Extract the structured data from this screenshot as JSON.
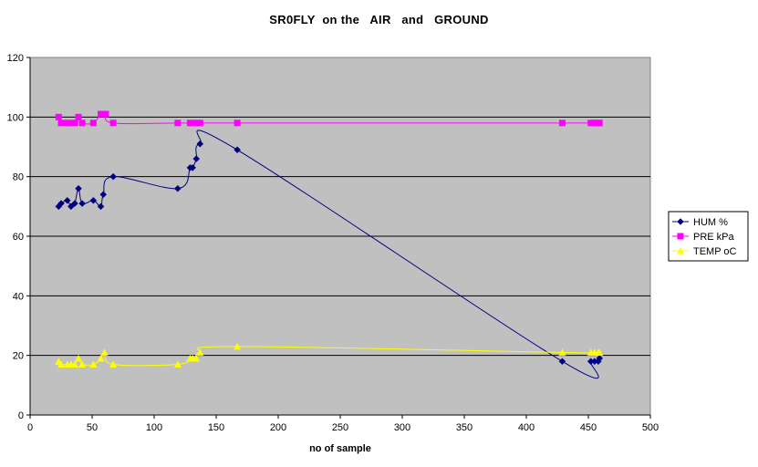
{
  "chart_data": {
    "type": "line",
    "title": "SR0FLY  on the   AIR   and   GROUND",
    "xlabel": "no of sample",
    "ylabel": "",
    "xlim": [
      0,
      500
    ],
    "ylim": [
      0,
      120
    ],
    "xticks": [
      0,
      50,
      100,
      150,
      200,
      250,
      300,
      350,
      400,
      450,
      500
    ],
    "yticks": [
      0,
      20,
      40,
      60,
      80,
      100,
      120
    ],
    "grid": "horizontal",
    "legend_position": "right",
    "plot_background": "#c0c0c0",
    "series": [
      {
        "name": "HUM %",
        "color": "#000080",
        "marker": "diamond",
        "x": [
          23,
          25,
          30,
          33,
          36,
          39,
          42,
          51,
          57,
          59,
          67,
          119,
          129,
          131,
          134,
          137,
          167,
          429,
          452,
          455,
          458,
          459
        ],
        "y": [
          70,
          71,
          72,
          70,
          71,
          76,
          71,
          72,
          70,
          74,
          80,
          76,
          83,
          83,
          86,
          91,
          89,
          18,
          18,
          18,
          18,
          19
        ]
      },
      {
        "name": "PRE kPa",
        "color": "#ff00ff",
        "marker": "square",
        "x": [
          23,
          25,
          30,
          33,
          36,
          39,
          42,
          51,
          57,
          59,
          61,
          67,
          119,
          129,
          131,
          134,
          137,
          167,
          429,
          452,
          455,
          458,
          459
        ],
        "y": [
          100,
          98,
          98,
          98,
          98,
          100,
          98,
          98,
          101,
          101,
          101,
          98,
          98,
          98,
          98,
          98,
          98,
          98,
          98,
          98,
          98,
          98,
          98
        ]
      },
      {
        "name": "TEMP oC",
        "color": "#ffff00",
        "marker": "triangle",
        "x": [
          23,
          25,
          30,
          33,
          36,
          39,
          42,
          51,
          57,
          60,
          67,
          119,
          129,
          131,
          134,
          137,
          167,
          429,
          452,
          455,
          458,
          459
        ],
        "y": [
          18,
          17,
          17,
          17,
          17,
          19,
          17,
          17,
          19,
          21,
          17,
          17,
          19,
          19,
          19,
          21,
          23,
          21,
          21,
          21,
          21,
          21
        ]
      }
    ]
  }
}
